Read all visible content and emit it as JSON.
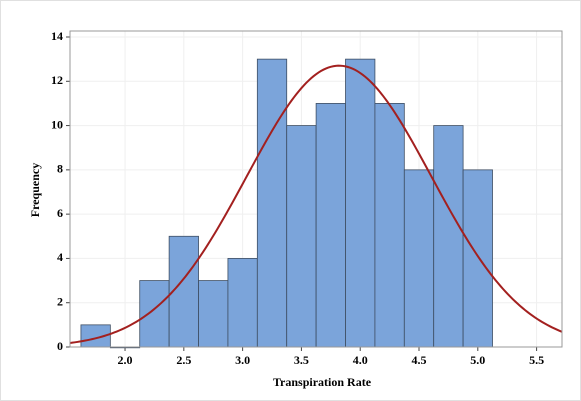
{
  "chart_data": {
    "type": "histogram",
    "xlabel": "Transpiration Rate",
    "ylabel": "Frequency",
    "bins": [
      1.625,
      1.875,
      2.125,
      2.375,
      2.625,
      2.875,
      3.125,
      3.375,
      3.625,
      3.875,
      4.125,
      4.375,
      4.625,
      4.875,
      5.125
    ],
    "counts": [
      1,
      0,
      3,
      5,
      3,
      4,
      13,
      10,
      11,
      13,
      11,
      8,
      10,
      8
    ],
    "color": "#7ba4da",
    "fit": {
      "type": "normal",
      "mean": 3.82,
      "sd": 0.785,
      "color": "#a3201f"
    },
    "xlim": [
      1.532,
      5.716
    ],
    "ylim": [
      0,
      14
    ],
    "xticks": [
      {
        "value": 2,
        "label": "2.0"
      },
      2.5,
      {
        "value": 3,
        "label": "3.0"
      },
      3.5,
      {
        "value": 4,
        "label": "4.0"
      },
      4.5,
      {
        "value": 5,
        "label": "5.0"
      },
      5.5
    ],
    "yticks": [
      0,
      2,
      4,
      6,
      8,
      10,
      12,
      14
    ],
    "grid": true
  }
}
